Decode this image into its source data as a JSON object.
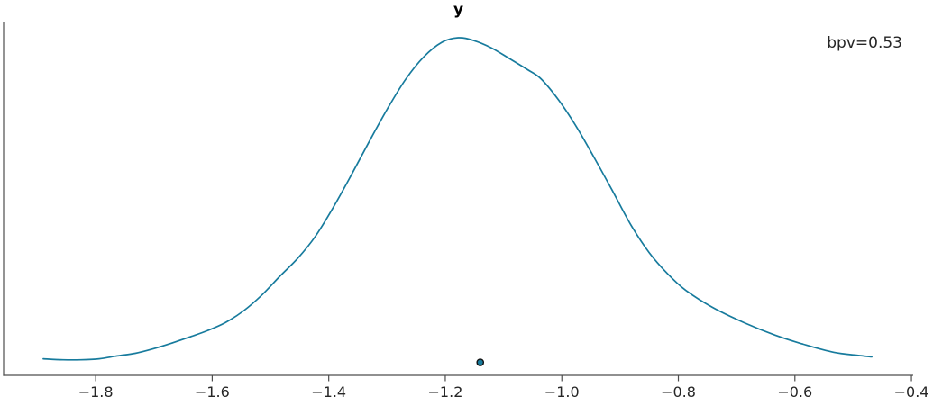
{
  "figure": {
    "title": "y",
    "annotation": "bpv=0.53"
  },
  "chart_data": {
    "type": "line",
    "subtype": "kde-density-bpv",
    "title": "y",
    "annotation": "bpv=0.53",
    "xlabel": "",
    "ylabel": "",
    "xlim": [
      -1.958,
      -0.397
    ],
    "ylim": [
      -0.04,
      1.05
    ],
    "x_ticks": [
      -1.8,
      -1.6,
      -1.4,
      -1.2,
      -1.0,
      -0.8,
      -0.6,
      -0.4
    ],
    "x_tick_labels": [
      "−1.8",
      "−1.6",
      "−1.4",
      "−1.2",
      "−1.0",
      "−0.8",
      "−0.6",
      "−0.4"
    ],
    "grid": false,
    "legend_position": "none",
    "y_units": "density (relative to peak = 1.0)",
    "series": [
      {
        "name": "kde-density-y",
        "x": [
          -1.89,
          -1.856,
          -1.825,
          -1.794,
          -1.763,
          -1.732,
          -1.701,
          -1.67,
          -1.639,
          -1.608,
          -1.577,
          -1.546,
          -1.515,
          -1.484,
          -1.453,
          -1.423,
          -1.392,
          -1.361,
          -1.33,
          -1.299,
          -1.268,
          -1.237,
          -1.206,
          -1.178,
          -1.152,
          -1.121,
          -1.09,
          -1.059,
          -1.036,
          -1.005,
          -0.974,
          -0.943,
          -0.912,
          -0.881,
          -0.85,
          -0.819,
          -0.788,
          -0.742,
          -0.688,
          -0.634,
          -0.58,
          -0.533,
          -0.494,
          -0.468
        ],
        "y": [
          0.011,
          0.008,
          0.008,
          0.011,
          0.02,
          0.028,
          0.042,
          0.059,
          0.078,
          0.098,
          0.123,
          0.159,
          0.207,
          0.265,
          0.321,
          0.388,
          0.478,
          0.578,
          0.682,
          0.782,
          0.872,
          0.941,
          0.986,
          1.0,
          0.992,
          0.969,
          0.936,
          0.902,
          0.874,
          0.807,
          0.723,
          0.626,
          0.525,
          0.422,
          0.338,
          0.274,
          0.223,
          0.17,
          0.123,
          0.084,
          0.053,
          0.031,
          0.022,
          0.017
        ]
      }
    ],
    "reference_point": {
      "x": -1.14,
      "y": 0.0
    },
    "colors": {
      "line": "#177b9d",
      "marker_fill": "#177b9d",
      "marker_edge": "#111111",
      "spine": "#4d4d4d",
      "tick": "#4d4d4d",
      "tick_label": "#262626",
      "title": "#000000",
      "annotation": "#262626",
      "background": "#ffffff"
    }
  }
}
